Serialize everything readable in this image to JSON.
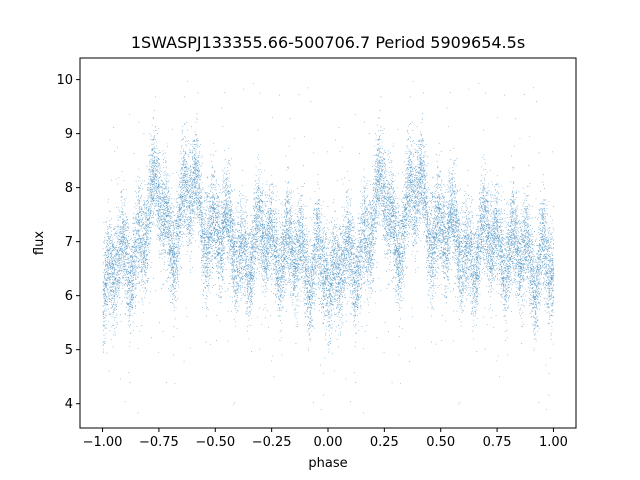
{
  "chart_data": {
    "type": "scatter",
    "title": "1SWASPJ133355.66-500706.7 Period 5909654.5s",
    "xlabel": "phase",
    "ylabel": "flux",
    "xlim": [
      -1.1,
      1.1
    ],
    "ylim": [
      3.55,
      10.4
    ],
    "xticks": [
      -1.0,
      -0.75,
      -0.5,
      -0.25,
      0.0,
      0.25,
      0.5,
      0.75,
      1.0
    ],
    "xtick_labels": [
      "−1.00",
      "−0.75",
      "−0.50",
      "−0.25",
      "0.00",
      "0.25",
      "0.50",
      "0.75",
      "1.00"
    ],
    "yticks": [
      4,
      5,
      6,
      7,
      8,
      9,
      10
    ],
    "ytick_labels": [
      "4",
      "5",
      "6",
      "7",
      "8",
      "9",
      "10"
    ],
    "grid": false,
    "point_color": "#1f77b4",
    "series": [
      {
        "trend": {
          "phase": [
            -1.0,
            -0.95,
            -0.9,
            -0.85,
            -0.8,
            -0.75,
            -0.7,
            -0.65,
            -0.6,
            -0.55,
            -0.5,
            -0.45,
            -0.4,
            -0.35,
            -0.3,
            -0.25,
            -0.2,
            -0.15,
            -0.1,
            -0.05,
            0.0
          ],
          "flux": [
            6.3,
            6.6,
            6.4,
            6.9,
            7.6,
            7.8,
            7.0,
            7.7,
            7.9,
            7.4,
            7.3,
            7.0,
            6.9,
            6.8,
            7.0,
            7.0,
            6.9,
            6.7,
            6.6,
            6.9,
            6.3
          ]
        },
        "spread": 0.45,
        "points_per_cycle": 11000
      }
    ]
  }
}
